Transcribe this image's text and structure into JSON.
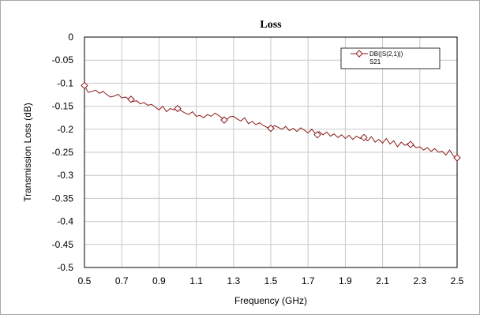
{
  "chart_data": {
    "type": "line",
    "title": "Loss",
    "xlabel": "Frequency (GHz)",
    "ylabel": "Transmission Loss (dB)",
    "xlim": [
      0.5,
      2.5
    ],
    "ylim": [
      -0.5,
      0
    ],
    "x_ticks": [
      0.5,
      0.7,
      0.9,
      1.1,
      1.3,
      1.5,
      1.7,
      1.9,
      2.1,
      2.3,
      2.5
    ],
    "x_tick_labels": [
      "0.5",
      "0.7",
      "0.9",
      "1.1",
      "1.3",
      "1.5",
      "1.7",
      "1.9",
      "2.1",
      "2.3",
      "2.5"
    ],
    "y_ticks": [
      0,
      -0.05,
      -0.1,
      -0.15,
      -0.2,
      -0.25,
      -0.3,
      -0.35,
      -0.4,
      -0.45,
      -0.5
    ],
    "y_tick_labels": [
      "0",
      "-0.05",
      "-0.1",
      "-0.15",
      "-0.2",
      "-0.25",
      "-0.3",
      "-0.35",
      "-0.4",
      "-0.45",
      "-0.5"
    ],
    "grid": true,
    "legend": {
      "placement": "top-right",
      "entries": [
        "DB(|S(2,1)|)",
        "S21"
      ]
    },
    "series": [
      {
        "name": "DB(|S(2,1)|)",
        "color": "#8b1a1a",
        "marker": "diamond",
        "x": [
          0.5,
          0.52,
          0.54,
          0.56,
          0.58,
          0.6,
          0.62,
          0.64,
          0.66,
          0.68,
          0.7,
          0.72,
          0.74,
          0.76,
          0.78,
          0.8,
          0.82,
          0.84,
          0.86,
          0.88,
          0.9,
          0.92,
          0.94,
          0.96,
          0.98,
          1.0,
          1.02,
          1.04,
          1.06,
          1.08,
          1.1,
          1.12,
          1.14,
          1.16,
          1.18,
          1.2,
          1.22,
          1.24,
          1.26,
          1.28,
          1.3,
          1.32,
          1.34,
          1.36,
          1.38,
          1.4,
          1.42,
          1.44,
          1.46,
          1.48,
          1.5,
          1.52,
          1.54,
          1.56,
          1.58,
          1.6,
          1.62,
          1.64,
          1.66,
          1.68,
          1.7,
          1.72,
          1.74,
          1.76,
          1.78,
          1.8,
          1.82,
          1.84,
          1.86,
          1.88,
          1.9,
          1.92,
          1.94,
          1.96,
          1.98,
          2.0,
          2.02,
          2.04,
          2.06,
          2.08,
          2.1,
          2.12,
          2.14,
          2.16,
          2.18,
          2.2,
          2.22,
          2.24,
          2.26,
          2.28,
          2.3,
          2.32,
          2.34,
          2.36,
          2.38,
          2.4,
          2.42,
          2.44,
          2.46,
          2.48,
          2.5
        ],
        "y": [
          -0.105,
          -0.12,
          -0.118,
          -0.115,
          -0.122,
          -0.118,
          -0.125,
          -0.13,
          -0.128,
          -0.124,
          -0.132,
          -0.13,
          -0.135,
          -0.14,
          -0.138,
          -0.145,
          -0.142,
          -0.148,
          -0.146,
          -0.152,
          -0.158,
          -0.15,
          -0.162,
          -0.155,
          -0.158,
          -0.155,
          -0.16,
          -0.165,
          -0.168,
          -0.162,
          -0.172,
          -0.17,
          -0.175,
          -0.168,
          -0.172,
          -0.165,
          -0.17,
          -0.176,
          -0.18,
          -0.173,
          -0.172,
          -0.178,
          -0.182,
          -0.175,
          -0.188,
          -0.183,
          -0.19,
          -0.186,
          -0.192,
          -0.196,
          -0.198,
          -0.192,
          -0.196,
          -0.2,
          -0.194,
          -0.203,
          -0.198,
          -0.205,
          -0.197,
          -0.202,
          -0.208,
          -0.2,
          -0.21,
          -0.205,
          -0.212,
          -0.206,
          -0.215,
          -0.21,
          -0.218,
          -0.212,
          -0.22,
          -0.213,
          -0.222,
          -0.215,
          -0.22,
          -0.218,
          -0.225,
          -0.216,
          -0.228,
          -0.222,
          -0.23,
          -0.22,
          -0.232,
          -0.225,
          -0.238,
          -0.228,
          -0.235,
          -0.23,
          -0.233,
          -0.24,
          -0.238,
          -0.245,
          -0.24,
          -0.248,
          -0.242,
          -0.25,
          -0.248,
          -0.256,
          -0.245,
          -0.258,
          -0.262
        ],
        "marker_x": [
          0.5,
          0.75,
          1.0,
          1.25,
          1.5,
          1.75,
          2.0,
          2.25,
          2.5
        ],
        "marker_y": [
          -0.105,
          -0.135,
          -0.155,
          -0.18,
          -0.198,
          -0.212,
          -0.218,
          -0.233,
          -0.262
        ]
      }
    ]
  }
}
